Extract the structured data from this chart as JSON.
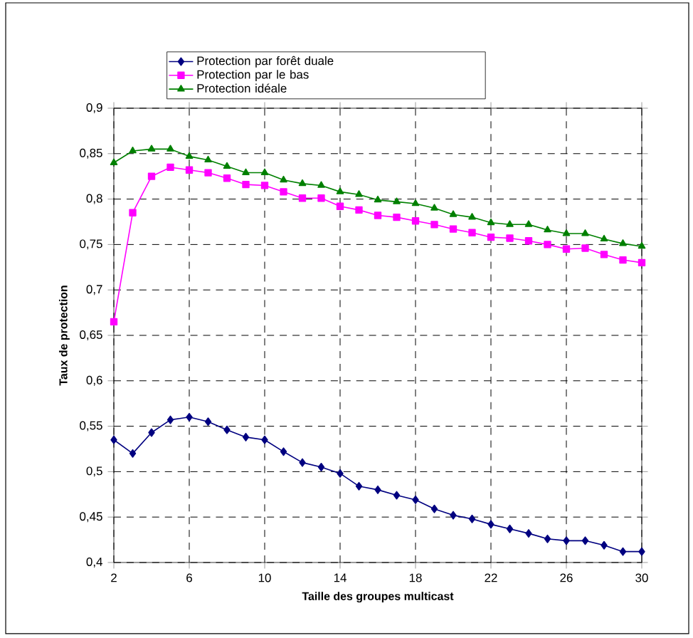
{
  "chart_data": {
    "type": "line",
    "xlabel": "Taille des groupes multicast",
    "ylabel": "Taux de protection",
    "x": [
      2,
      3,
      4,
      5,
      6,
      7,
      8,
      9,
      10,
      11,
      12,
      13,
      14,
      15,
      16,
      17,
      18,
      19,
      20,
      21,
      22,
      23,
      24,
      25,
      26,
      27,
      28,
      29,
      30
    ],
    "series": [
      {
        "name": "Protection par forêt duale",
        "color": "#000080",
        "marker": "diamond",
        "values": [
          0.535,
          0.52,
          0.543,
          0.557,
          0.56,
          0.555,
          0.546,
          0.538,
          0.535,
          0.522,
          0.51,
          0.505,
          0.498,
          0.484,
          0.48,
          0.474,
          0.469,
          0.459,
          0.452,
          0.448,
          0.442,
          0.437,
          0.432,
          0.426,
          0.424,
          0.424,
          0.419,
          0.412,
          0.412
        ]
      },
      {
        "name": "Protection par le bas",
        "color": "#ff00ff",
        "marker": "square",
        "values": [
          0.665,
          0.785,
          0.825,
          0.835,
          0.832,
          0.829,
          0.823,
          0.816,
          0.815,
          0.808,
          0.801,
          0.801,
          0.792,
          0.788,
          0.782,
          0.78,
          0.776,
          0.772,
          0.767,
          0.763,
          0.758,
          0.757,
          0.754,
          0.75,
          0.745,
          0.746,
          0.739,
          0.733,
          0.73
        ]
      },
      {
        "name": "Protection idéale",
        "color": "#008000",
        "marker": "triangle",
        "values": [
          0.84,
          0.853,
          0.855,
          0.855,
          0.847,
          0.843,
          0.836,
          0.829,
          0.829,
          0.821,
          0.817,
          0.815,
          0.808,
          0.805,
          0.799,
          0.797,
          0.795,
          0.79,
          0.783,
          0.78,
          0.774,
          0.772,
          0.772,
          0.766,
          0.762,
          0.762,
          0.756,
          0.751,
          0.748
        ]
      }
    ],
    "xlim": [
      2,
      30
    ],
    "xticks": [
      2,
      6,
      10,
      14,
      18,
      22,
      26,
      30
    ],
    "ylim": [
      0.4,
      0.9
    ],
    "yticks": [
      {
        "value": 0.4,
        "label": "0,4"
      },
      {
        "value": 0.45,
        "label": "0,45"
      },
      {
        "value": 0.5,
        "label": "0,5"
      },
      {
        "value": 0.55,
        "label": "0,55"
      },
      {
        "value": 0.6,
        "label": "0,6"
      },
      {
        "value": 0.65,
        "label": "0,65"
      },
      {
        "value": 0.7,
        "label": "0,7"
      },
      {
        "value": 0.75,
        "label": "0,75"
      },
      {
        "value": 0.8,
        "label": "0,8"
      },
      {
        "value": 0.85,
        "label": "0,85"
      },
      {
        "value": 0.9,
        "label": "0,9"
      }
    ],
    "grid": true,
    "legend": "top",
    "line_style": "solid"
  }
}
